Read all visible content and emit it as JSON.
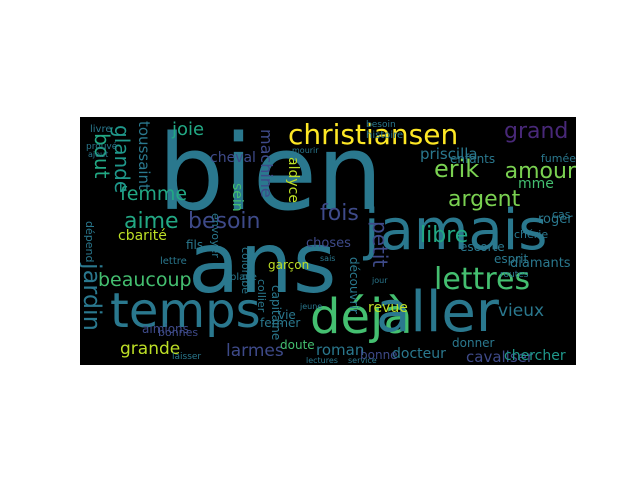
{
  "words": [
    {
      "text": "bien",
      "color": "#2a788e"
    },
    {
      "text": "ans",
      "color": "#2a788e"
    },
    {
      "text": "jamais",
      "color": "#2a788e"
    },
    {
      "text": "temps",
      "color": "#2a788e"
    },
    {
      "text": "déjà",
      "color": "#44bf70"
    },
    {
      "text": "aller",
      "color": "#2a788e"
    },
    {
      "text": "christiansen",
      "color": "#fde725"
    },
    {
      "text": "grand",
      "color": "#482878"
    },
    {
      "text": "amour",
      "color": "#7ad151"
    },
    {
      "text": "argent",
      "color": "#7ad151"
    },
    {
      "text": "lettres",
      "color": "#44bf70"
    },
    {
      "text": "fois",
      "color": "#3e4a89"
    },
    {
      "text": "besoin",
      "color": "#3e4a89"
    },
    {
      "text": "aime",
      "color": "#22a884"
    },
    {
      "text": "beaucoup",
      "color": "#44bf70"
    },
    {
      "text": "femme",
      "color": "#22a884"
    },
    {
      "text": "bout",
      "color": "#22a884"
    },
    {
      "text": "glande",
      "color": "#1f988b"
    },
    {
      "text": "toussaint",
      "color": "#2a788e"
    },
    {
      "text": "joie",
      "color": "#22a884"
    },
    {
      "text": "erik",
      "color": "#7ad151"
    },
    {
      "text": "petit",
      "color": "#3e4a89"
    },
    {
      "text": "libre",
      "color": "#22a884"
    },
    {
      "text": "priscilla",
      "color": "#2a788e"
    },
    {
      "text": "mme",
      "color": "#44bf70"
    },
    {
      "text": "enfants",
      "color": "#2a788e"
    },
    {
      "text": "jardin",
      "color": "#2a788e"
    },
    {
      "text": "grande",
      "color": "#bddf26"
    },
    {
      "text": "larmes",
      "color": "#3e4a89"
    },
    {
      "text": "roman",
      "color": "#2a788e"
    },
    {
      "text": "vieux",
      "color": "#2a788e"
    },
    {
      "text": "cavaliser",
      "color": "#3e4a89"
    },
    {
      "text": "chercher",
      "color": "#1f988b"
    },
    {
      "text": "docteur",
      "color": "#2a788e"
    },
    {
      "text": "diamants",
      "color": "#2a788e"
    },
    {
      "text": "roger",
      "color": "#2a788e"
    },
    {
      "text": "revue",
      "color": "#bddf26"
    },
    {
      "text": "machine",
      "color": "#3e4a89"
    },
    {
      "text": "cheval",
      "color": "#3e4a89"
    },
    {
      "text": "sein",
      "color": "#44bf70"
    },
    {
      "text": "aimions",
      "color": "#3e4a89"
    },
    {
      "text": "capitaine",
      "color": "#2a788e"
    },
    {
      "text": "choses",
      "color": "#3e4a89"
    },
    {
      "text": "cbarité",
      "color": "#bddf26"
    },
    {
      "text": "vie",
      "color": "#2a788e"
    },
    {
      "text": "fils",
      "color": "#2a788e"
    },
    {
      "text": "doute",
      "color": "#44bf70"
    },
    {
      "text": "fermer",
      "color": "#2a788e"
    },
    {
      "text": "esprit",
      "color": "#2a788e"
    },
    {
      "text": "escorte",
      "color": "#2a788e"
    },
    {
      "text": "fumée",
      "color": "#2a788e"
    },
    {
      "text": "cas",
      "color": "#2a788e"
    },
    {
      "text": "garçon",
      "color": "#bddf26"
    },
    {
      "text": "aldyce",
      "color": "#bddf26"
    },
    {
      "text": "découvrir",
      "color": "#2a788e"
    },
    {
      "text": "donner",
      "color": "#2a788e"
    },
    {
      "text": "colombe",
      "color": "#2a788e"
    },
    {
      "text": "bonne",
      "color": "#3e4a89"
    },
    {
      "text": "chérie",
      "color": "#2a788e"
    },
    {
      "text": "collier",
      "color": "#2a788e"
    },
    {
      "text": "bonnes",
      "color": "#3e4a89"
    },
    {
      "text": "dépend",
      "color": "#2a788e"
    },
    {
      "text": "envoyer",
      "color": "#2a788e"
    },
    {
      "text": "lettre",
      "color": "#2a788e"
    },
    {
      "text": "histoire",
      "color": "#2a788e"
    },
    {
      "text": "livre",
      "color": "#2a788e"
    },
    {
      "text": "place",
      "color": "#2a788e"
    },
    {
      "text": "prouvé",
      "color": "#2a788e"
    },
    {
      "text": "lectures",
      "color": "#2a788e"
    },
    {
      "text": "service",
      "color": "#2a788e"
    },
    {
      "text": "jeune",
      "color": "#2a788e"
    },
    {
      "text": "sais",
      "color": "#2a788e"
    },
    {
      "text": "laisser",
      "color": "#2a788e"
    },
    {
      "text": "besoin",
      "color": "#2a788e"
    },
    {
      "text": "routes",
      "color": "#2a788e"
    },
    {
      "text": "ajout",
      "color": "#2a788e"
    },
    {
      "text": "jour",
      "color": "#2a788e"
    },
    {
      "text": "mourir",
      "color": "#2a788e"
    }
  ]
}
